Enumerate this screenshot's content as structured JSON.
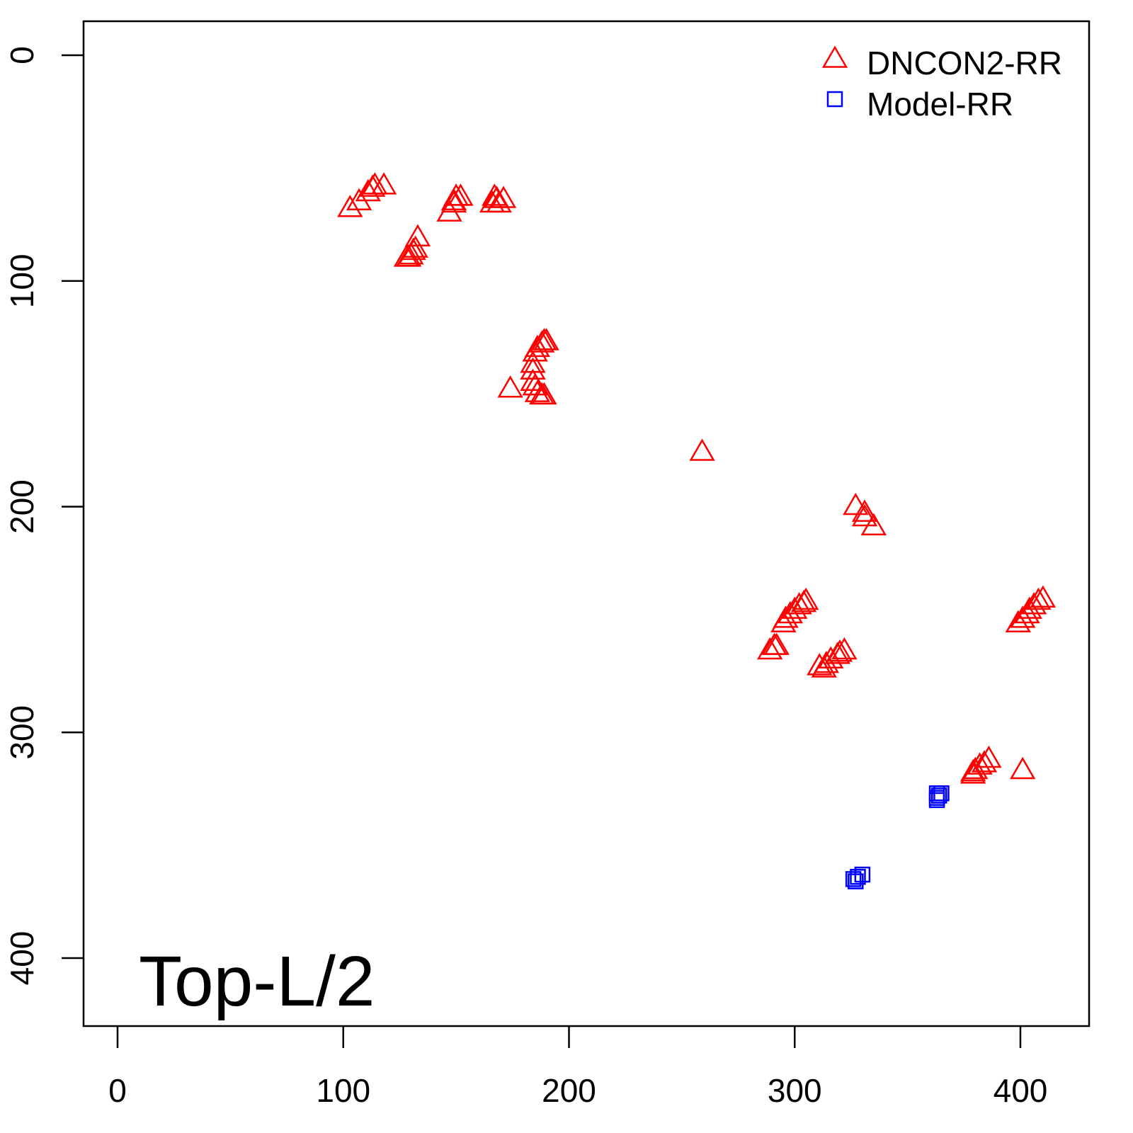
{
  "chart_data": {
    "type": "scatter",
    "title": "",
    "xlabel": "",
    "ylabel": "",
    "xlim": [
      -15,
      430
    ],
    "ylim": [
      430,
      -15
    ],
    "y_reversed": true,
    "x_ticks": [
      0,
      100,
      200,
      300,
      400
    ],
    "y_ticks": [
      0,
      100,
      200,
      300,
      400
    ],
    "x_tick_labels": [
      "0",
      "100",
      "200",
      "300",
      "400"
    ],
    "y_tick_labels": [
      "0",
      "100",
      "200",
      "300",
      "400"
    ],
    "grid": false,
    "legend_position": "top-right",
    "annotation": "Top-L/2",
    "series": [
      {
        "name": "DNCON2-RR",
        "marker": "triangle-open",
        "color": "#ff0000",
        "points": [
          [
            103,
            68
          ],
          [
            107,
            65
          ],
          [
            111,
            61
          ],
          [
            114,
            58
          ],
          [
            118,
            58
          ],
          [
            113,
            59
          ],
          [
            147,
            70
          ],
          [
            149,
            66
          ],
          [
            150,
            63
          ],
          [
            152,
            63
          ],
          [
            149,
            65
          ],
          [
            166,
            66
          ],
          [
            167,
            63
          ],
          [
            169,
            66
          ],
          [
            171,
            64
          ],
          [
            168,
            64
          ],
          [
            133,
            81
          ],
          [
            130,
            89
          ],
          [
            128,
            90
          ],
          [
            131,
            87
          ],
          [
            132,
            86
          ],
          [
            129,
            90
          ],
          [
            185,
            132
          ],
          [
            186,
            130
          ],
          [
            188,
            128
          ],
          [
            189,
            127
          ],
          [
            190,
            127
          ],
          [
            184,
            137
          ],
          [
            184,
            140
          ],
          [
            184,
            145
          ],
          [
            185,
            147
          ],
          [
            186,
            150
          ],
          [
            188,
            151
          ],
          [
            189,
            151
          ],
          [
            174,
            148
          ],
          [
            259,
            176
          ],
          [
            327,
            200
          ],
          [
            331,
            203
          ],
          [
            331,
            205
          ],
          [
            335,
            209
          ],
          [
            295,
            252
          ],
          [
            296,
            250
          ],
          [
            298,
            248
          ],
          [
            300,
            246
          ],
          [
            302,
            244
          ],
          [
            304,
            243
          ],
          [
            305,
            242
          ],
          [
            289,
            264
          ],
          [
            291,
            262
          ],
          [
            292,
            262
          ],
          [
            311,
            271
          ],
          [
            313,
            272
          ],
          [
            314,
            270
          ],
          [
            316,
            268
          ],
          [
            319,
            266
          ],
          [
            320,
            265
          ],
          [
            322,
            264
          ],
          [
            399,
            252
          ],
          [
            401,
            250
          ],
          [
            403,
            248
          ],
          [
            404,
            246
          ],
          [
            406,
            244
          ],
          [
            408,
            242
          ],
          [
            410,
            241
          ],
          [
            379,
            318
          ],
          [
            380,
            317
          ],
          [
            382,
            315
          ],
          [
            384,
            314
          ],
          [
            386,
            312
          ],
          [
            379,
            319
          ],
          [
            401,
            317
          ]
        ]
      },
      {
        "name": "Model-RR",
        "marker": "square-open",
        "color": "#0000ff",
        "points": [
          [
            363,
            329
          ],
          [
            363,
            327
          ],
          [
            365,
            327
          ],
          [
            364,
            328
          ],
          [
            363,
            330
          ],
          [
            326,
            365
          ],
          [
            328,
            364
          ],
          [
            330,
            363
          ],
          [
            327,
            366
          ]
        ]
      }
    ]
  }
}
